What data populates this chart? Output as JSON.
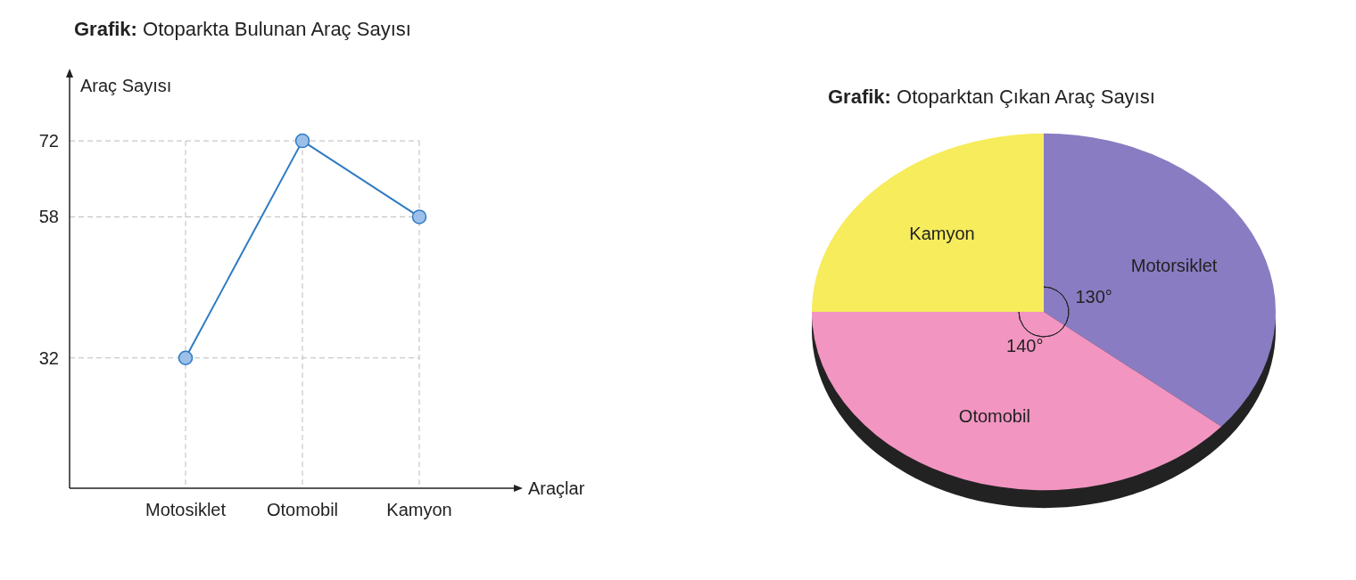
{
  "chart_data": [
    {
      "type": "line",
      "title": "Grafik: Otoparkta Bulunan Araç Sayısı",
      "xlabel": "Araçlar",
      "ylabel": "Araç Sayısı",
      "categories": [
        "Motosiklet",
        "Otomobil",
        "Kamyon"
      ],
      "series": [
        {
          "color": "#2f7bc4",
          "values": [
            32,
            72,
            58
          ]
        }
      ],
      "ylim": [
        8,
        84
      ],
      "yticks": [
        32,
        58,
        72
      ],
      "grid": true,
      "marker": "circle",
      "line_style": "solid"
    },
    {
      "type": "pie",
      "title": "Grafik: Otoparktan Çıkan Araç Sayısı",
      "categories": [
        "Motorsiklet",
        "Otomobil",
        "Kamyon"
      ],
      "values": [
        130,
        140,
        90
      ],
      "colors": [
        "#8a7cc2",
        "#f295c1",
        "#f6ec5c"
      ],
      "value_labels": [
        "130°",
        "140°",
        null
      ]
    }
  ]
}
